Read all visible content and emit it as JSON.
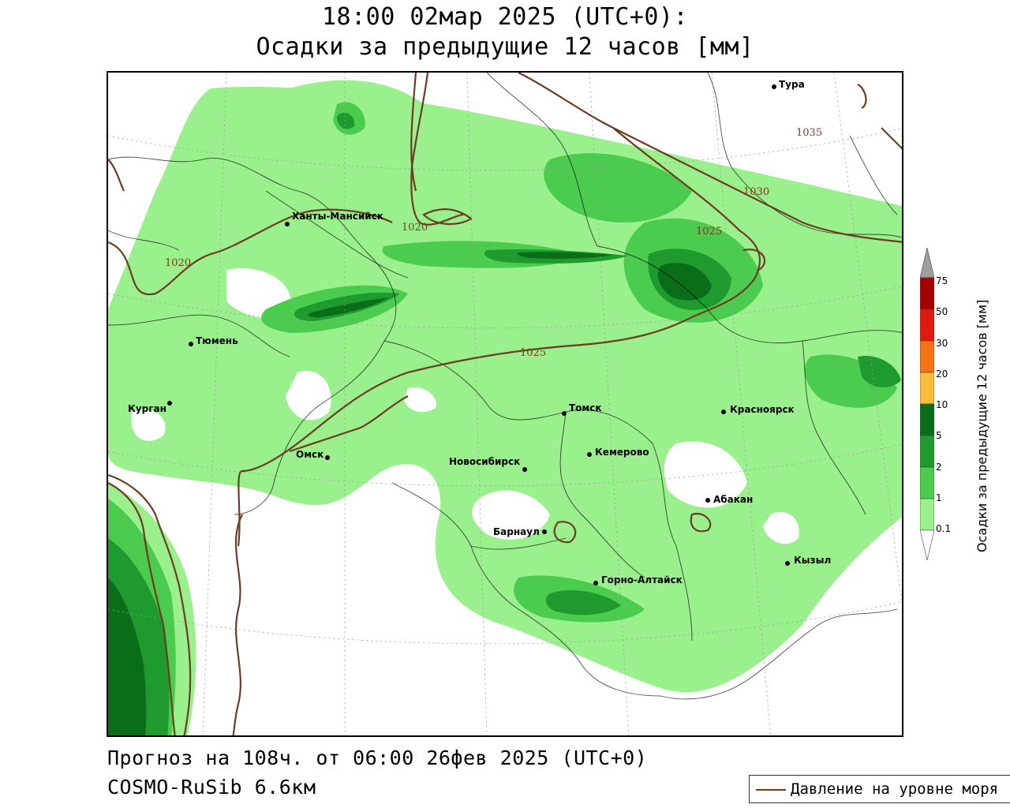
{
  "header": {
    "title_line1": "18:00 02мар 2025 (UTC+0):",
    "title_line2": "Осадки за предыдущие 12 часов [мм]"
  },
  "footer": {
    "forecast": "Прогноз на 108ч. от 06:00 26фев 2025 (UTC+0)",
    "model": "COSMO-RuSib 6.6км"
  },
  "legend": {
    "pressure_label": "Давление на уровне моря",
    "pressure_color": "#6b3d22"
  },
  "colorbar": {
    "title": "Осадки за предыдущие 12 часов [мм]",
    "ticks": [
      "75",
      "50",
      "30",
      "20",
      "10",
      "5",
      "2",
      "1",
      "0.1"
    ],
    "colors": [
      "#9e9e9e",
      "#a50000",
      "#e01a10",
      "#f57316",
      "#f7bd3a",
      "#0a6e19",
      "#1e9a2f",
      "#4ccc4f",
      "#9af08c",
      "#ffffff"
    ]
  },
  "cities": [
    {
      "name": "Тура"
    },
    {
      "name": "Ханты-Мансийск"
    },
    {
      "name": "Тюмень"
    },
    {
      "name": "Курган"
    },
    {
      "name": "Омск"
    },
    {
      "name": "Томск"
    },
    {
      "name": "Красноярск"
    },
    {
      "name": "Новосибирск"
    },
    {
      "name": "Кемерово"
    },
    {
      "name": "Абакан"
    },
    {
      "name": "Барнаул"
    },
    {
      "name": "Горно-Алтайск"
    },
    {
      "name": "Кызыл"
    }
  ],
  "isobars": [
    "1035",
    "1030",
    "1025",
    "1025",
    "1020",
    "1020"
  ]
}
